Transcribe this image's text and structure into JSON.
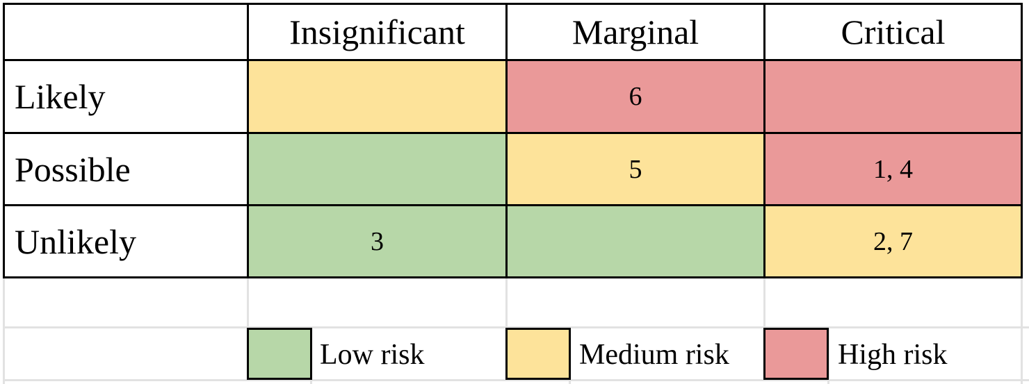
{
  "colors": {
    "low": "#b7d7a8",
    "medium": "#fde39a",
    "high": "#ea9999"
  },
  "columns": [
    "Insignificant",
    "Marginal",
    "Critical"
  ],
  "rows": [
    {
      "label": "Likely",
      "cells": [
        {
          "value": "",
          "level": "medium"
        },
        {
          "value": "6",
          "level": "high"
        },
        {
          "value": "",
          "level": "high"
        }
      ]
    },
    {
      "label": "Possible",
      "cells": [
        {
          "value": "",
          "level": "low"
        },
        {
          "value": "5",
          "level": "medium"
        },
        {
          "value": "1, 4",
          "level": "high"
        }
      ]
    },
    {
      "label": "Unlikely",
      "cells": [
        {
          "value": "3",
          "level": "low"
        },
        {
          "value": "",
          "level": "low"
        },
        {
          "value": "2, 7",
          "level": "medium"
        }
      ]
    }
  ],
  "legend": {
    "low_label": "Low risk",
    "medium_label": "Medium risk",
    "high_label": "High risk"
  }
}
